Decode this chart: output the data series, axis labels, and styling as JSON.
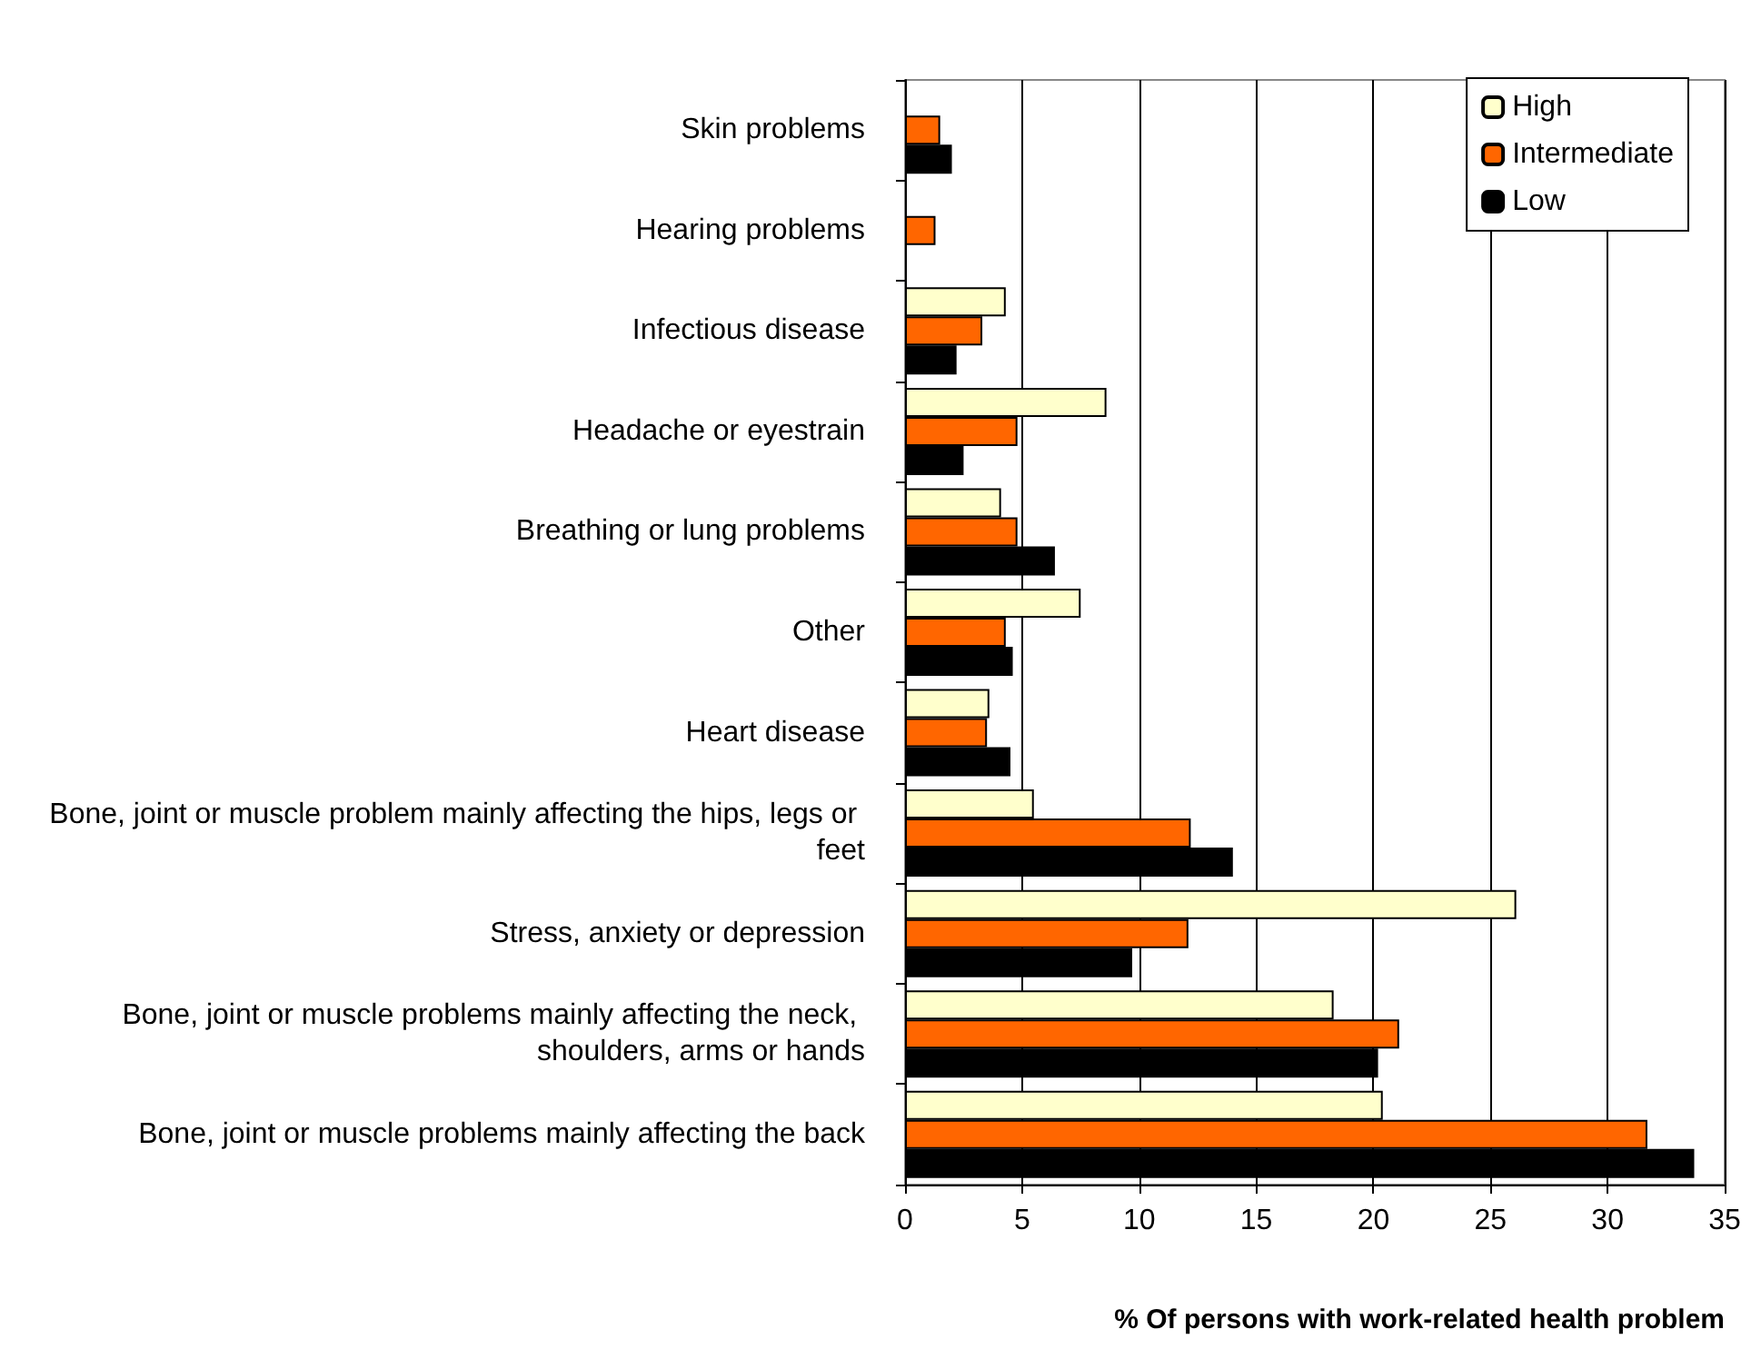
{
  "chart_data": {
    "type": "bar",
    "orientation": "horizontal",
    "xlabel": "% Of persons with work-related health problem",
    "categories": [
      "Skin problems",
      "Hearing problems",
      "Infectious disease",
      "Headache or eyestrain",
      "Breathing or lung problems",
      "Other",
      "Heart disease",
      "Bone, joint or muscle problem mainly affecting the hips, legs or feet",
      "Stress, anxiety or depression",
      "Bone, joint or muscle problems mainly affecting the neck, shoulders, arms or hands",
      "Bone, joint or muscle problems mainly affecting the back"
    ],
    "series": [
      {
        "name": "High",
        "color": "#ffffcc",
        "values": [
          null,
          null,
          4.3,
          8.6,
          4.1,
          7.5,
          3.6,
          5.5,
          26.1,
          18.3,
          20.4
        ]
      },
      {
        "name": "Intermediate",
        "color": "#ff6600",
        "values": [
          1.5,
          1.3,
          3.3,
          4.8,
          4.8,
          4.3,
          3.5,
          12.2,
          12.1,
          21.1,
          31.7
        ]
      },
      {
        "name": "Low",
        "color": "#000000",
        "values": [
          2.0,
          null,
          2.2,
          2.5,
          6.4,
          4.6,
          4.5,
          14.0,
          9.7,
          20.2,
          33.7
        ]
      }
    ],
    "xlim": [
      0,
      35
    ],
    "xticks": [
      0,
      5,
      10,
      15,
      20,
      25,
      30,
      35
    ],
    "grid": "x",
    "legend": "top right"
  }
}
